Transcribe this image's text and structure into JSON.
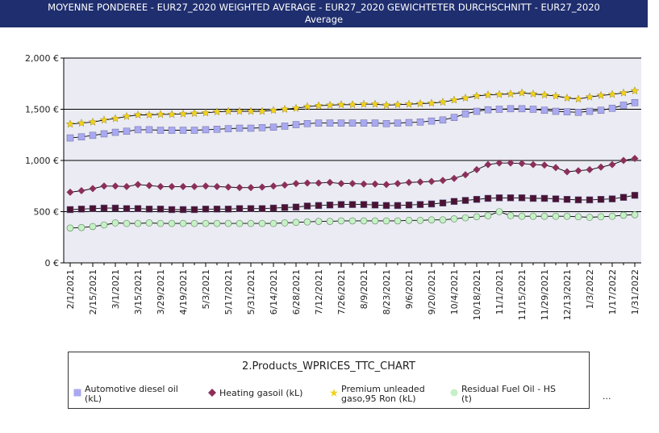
{
  "title": {
    "line1": "MOYENNE PONDEREE - EUR27_2020 WEIGHTED AVERAGE - EUR27_2020 GEWICHTETER DURCHSCHNITT - EUR27_2020",
    "line2": "Average"
  },
  "legend": {
    "title": "2.Products_WPRICES_TTC_CHART",
    "items": [
      {
        "line1": "Automotive diesel oil",
        "line2": "(kL)",
        "marker": "square",
        "color": "#a9a9f2"
      },
      {
        "line1": "Heating gasoil (kL)",
        "line2": "",
        "marker": "diamond",
        "color": "#8b2f5a"
      },
      {
        "line1": "Premium unleaded",
        "line2": "gaso,95 Ron (kL)",
        "marker": "star",
        "color": "#f2d21b"
      },
      {
        "line1": "Residual Fuel Oil - HS",
        "line2": "(t)",
        "marker": "circle",
        "color": "#c6f0c6"
      }
    ],
    "more": "..."
  },
  "chart_data": {
    "type": "line",
    "ylim": [
      0,
      2000
    ],
    "yticks": [
      "0 €",
      "500 €",
      "1,000 €",
      "1,500 €",
      "2,000 €"
    ],
    "ytick_values": [
      0,
      500,
      1000,
      1500,
      2000
    ],
    "xtick_labels": [
      "2/1/2021",
      "2/15/2021",
      "3/1/2021",
      "3/15/2021",
      "3/29/2021",
      "4/19/2021",
      "5/3/2021",
      "5/17/2021",
      "5/31/2021",
      "6/14/2021",
      "6/28/2021",
      "7/12/2021",
      "7/26/2021",
      "8/9/2021",
      "8/23/2021",
      "9/6/2021",
      "9/20/2021",
      "10/4/2021",
      "10/18/2021",
      "11/1/2021",
      "11/15/2021",
      "11/29/2021",
      "12/13/2021",
      "1/3/2022",
      "1/17/2022",
      "1/31/2022"
    ],
    "xtick_index": [
      0,
      2,
      4,
      6,
      8,
      10,
      12,
      14,
      16,
      18,
      20,
      22,
      24,
      26,
      28,
      30,
      32,
      34,
      36,
      38,
      40,
      42,
      44,
      46,
      48,
      50
    ],
    "x": [
      "2/1/2021",
      "2/8/2021",
      "2/15/2021",
      "2/22/2021",
      "3/1/2021",
      "3/8/2021",
      "3/15/2021",
      "3/22/2021",
      "3/29/2021",
      "4/5/2021",
      "4/19/2021",
      "4/26/2021",
      "5/3/2021",
      "5/10/2021",
      "5/17/2021",
      "5/24/2021",
      "5/31/2021",
      "6/7/2021",
      "6/14/2021",
      "6/21/2021",
      "6/28/2021",
      "7/5/2021",
      "7/12/2021",
      "7/19/2021",
      "7/26/2021",
      "8/2/2021",
      "8/9/2021",
      "8/16/2021",
      "8/23/2021",
      "8/30/2021",
      "9/6/2021",
      "9/13/2021",
      "9/20/2021",
      "9/27/2021",
      "10/4/2021",
      "10/11/2021",
      "10/18/2021",
      "10/25/2021",
      "11/1/2021",
      "11/8/2021",
      "11/15/2021",
      "11/22/2021",
      "11/29/2021",
      "12/6/2021",
      "12/13/2021",
      "12/20/2021",
      "1/3/2022",
      "1/10/2022",
      "1/17/2022",
      "1/24/2022",
      "1/31/2022"
    ],
    "series": [
      {
        "name": "Premium unleaded gaso,95 Ron (kL)",
        "marker": "star",
        "color": "#f2d21b",
        "values": [
          1355,
          1365,
          1375,
          1395,
          1410,
          1430,
          1445,
          1445,
          1450,
          1450,
          1455,
          1460,
          1465,
          1475,
          1480,
          1480,
          1480,
          1480,
          1490,
          1500,
          1510,
          1525,
          1535,
          1540,
          1545,
          1545,
          1550,
          1550,
          1540,
          1545,
          1550,
          1555,
          1560,
          1570,
          1590,
          1610,
          1630,
          1640,
          1645,
          1650,
          1660,
          1650,
          1640,
          1630,
          1610,
          1600,
          1620,
          1635,
          1645,
          1660,
          1680
        ]
      },
      {
        "name": "Automotive diesel oil (kL)",
        "marker": "square",
        "color": "#a9a9f2",
        "values": [
          1220,
          1230,
          1245,
          1260,
          1275,
          1285,
          1300,
          1300,
          1295,
          1295,
          1295,
          1295,
          1300,
          1305,
          1310,
          1315,
          1315,
          1320,
          1325,
          1335,
          1350,
          1360,
          1365,
          1365,
          1365,
          1365,
          1365,
          1365,
          1360,
          1365,
          1370,
          1375,
          1385,
          1395,
          1420,
          1455,
          1480,
          1495,
          1500,
          1505,
          1505,
          1500,
          1490,
          1480,
          1475,
          1470,
          1480,
          1490,
          1510,
          1540,
          1565
        ]
      },
      {
        "name": "Heating gasoil (kL)",
        "marker": "diamond",
        "color": "#8b2f5a",
        "values": [
          690,
          705,
          725,
          750,
          750,
          745,
          765,
          755,
          745,
          745,
          745,
          745,
          750,
          745,
          740,
          735,
          735,
          740,
          750,
          760,
          775,
          780,
          780,
          785,
          775,
          775,
          770,
          770,
          765,
          775,
          785,
          790,
          795,
          805,
          825,
          860,
          910,
          960,
          975,
          975,
          970,
          960,
          955,
          930,
          890,
          900,
          910,
          935,
          960,
          1000,
          1020
        ]
      },
      {
        "name": "Residual Fuel Oil - HS (t)",
        "marker": "circle",
        "color": "#c6f0c6",
        "values": [
          340,
          345,
          355,
          370,
          390,
          385,
          385,
          390,
          385,
          385,
          385,
          385,
          385,
          385,
          385,
          385,
          385,
          385,
          385,
          390,
          395,
          400,
          405,
          405,
          410,
          410,
          410,
          410,
          410,
          410,
          415,
          415,
          420,
          420,
          430,
          440,
          450,
          460,
          500,
          460,
          455,
          455,
          455,
          455,
          455,
          450,
          445,
          450,
          455,
          465,
          470
        ]
      },
      {
        "name": "",
        "marker": "square",
        "color": "#4a1232",
        "values": [
          520,
          525,
          530,
          535,
          535,
          530,
          530,
          525,
          525,
          520,
          520,
          520,
          525,
          525,
          525,
          530,
          530,
          530,
          535,
          540,
          545,
          555,
          560,
          565,
          570,
          570,
          570,
          565,
          560,
          560,
          565,
          570,
          575,
          585,
          600,
          610,
          620,
          630,
          635,
          635,
          635,
          630,
          630,
          625,
          620,
          615,
          615,
          620,
          625,
          640,
          660
        ]
      }
    ]
  }
}
